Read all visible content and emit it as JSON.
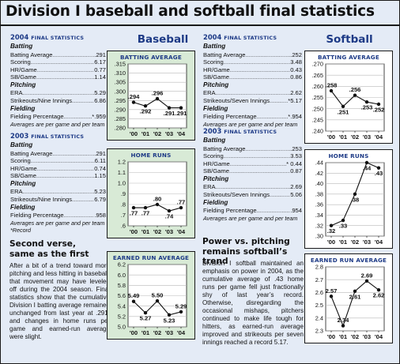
{
  "page": {
    "title": "Division I baseball and softball final statistics",
    "baseball_label": "Baseball",
    "softball_label": "Softball"
  },
  "baseball": {
    "y2004": {
      "year": "2004",
      "heading": "FINAL STATISTICS",
      "batting": "Batting",
      "rows1": [
        {
          "label": "Batting Average",
          "value": ".291"
        },
        {
          "label": "Scoring",
          "value": "6.17"
        },
        {
          "label": "HR/Game",
          "value": "0.77"
        },
        {
          "label": "SB/Game",
          "value": "1.14"
        }
      ],
      "pitching": "Pitching",
      "rows2": [
        {
          "label": "ERA",
          "value": "5.29"
        },
        {
          "label": "Strikeouts/Nine Innings",
          "value": "6.86"
        }
      ],
      "fielding": "Fielding",
      "rows3": [
        {
          "label": "Fielding Percentage",
          "value": "*.959"
        }
      ],
      "note": "Averages are per game and per team"
    },
    "y2003": {
      "year": "2003",
      "heading": "FINAL STATISTICS",
      "batting": "Batting",
      "rows1": [
        {
          "label": "Batting Average",
          "value": ".291"
        },
        {
          "label": "Scoring",
          "value": "6.11"
        },
        {
          "label": "HR/Game",
          "value": "0.74"
        },
        {
          "label": "SB/Game",
          "value": "1.15"
        }
      ],
      "pitching": "Pitching",
      "rows2": [
        {
          "label": "ERA",
          "value": "5.23"
        },
        {
          "label": "Strikeouts/Nine Innings",
          "value": "6.79"
        }
      ],
      "fielding": "Fielding",
      "rows3": [
        {
          "label": "Fielding Percentage",
          "value": ".958"
        }
      ],
      "note": "Averages are per game and per team",
      "record": "*Record"
    },
    "story_head": [
      "Second verse,",
      "same as the first"
    ],
    "story": "After a bit of a trend toward more pitching and less hitting in baseball, that movement may have leveled off during the 2004 season. Final statistics show that the cumulative Division I batting average remained unchanged from last year at .291, and changes in home runs per game and earned-run average were slight."
  },
  "softball": {
    "y2004": {
      "year": "2004",
      "heading": "FINAL STATISTICS",
      "batting": "Batting",
      "rows1": [
        {
          "label": "Batting Average",
          "value": ".252"
        },
        {
          "label": "Scoring",
          "value": "3.48"
        },
        {
          "label": "HR/Game",
          "value": "0.43"
        },
        {
          "label": "SB/Game",
          "value": "0.86"
        }
      ],
      "pitching": "Pitching",
      "rows2": [
        {
          "label": "ERA",
          "value": "2.62"
        },
        {
          "label": "Strikeouts/Seven Innings",
          "value": "*5.17"
        }
      ],
      "fielding": "Fielding",
      "rows3": [
        {
          "label": "Fielding Percentage",
          "value": "*.954"
        }
      ],
      "note": "Averages are per game and per team"
    },
    "y2003": {
      "year": "2003",
      "heading": "FINAL STATISTICS",
      "batting": "Batting",
      "rows1": [
        {
          "label": "Batting Average",
          "value": ".253"
        },
        {
          "label": "Scoring",
          "value": "3.53"
        },
        {
          "label": "HR/Game",
          "value": "* 0.44"
        },
        {
          "label": "SB/Game",
          "value": "0.87"
        }
      ],
      "pitching": "Pitching",
      "rows2": [
        {
          "label": "ERA",
          "value": "2.69"
        },
        {
          "label": "Strikeouts/Seven Innings",
          "value": "5.06"
        }
      ],
      "fielding": "Fielding",
      "rows3": [
        {
          "label": "Fielding Percentage",
          "value": ".954"
        }
      ],
      "note": "Averages are per game and per team"
    },
    "story_head": [
      "Power vs. pitching",
      "remains softball’s trend"
    ],
    "story": "Division I softball maintained an emphasis on power in 2004, as the cumulative average of .43 home runs per game fell just fractionally shy of last year’s record. Otherwise, disregarding the occasional mishaps, pitchers continued to make life tough for hitters, as earned-run average improved and strikeouts per seven innings reached a record 5.17."
  },
  "chart_data": [
    {
      "id": "bb_avg",
      "type": "line",
      "title": "BATTING AVERAGE",
      "categories": [
        "'00",
        "'01",
        "'02",
        "'03",
        "'04"
      ],
      "values": [
        0.294,
        0.292,
        0.296,
        0.291,
        0.291
      ],
      "labels": [
        ".294",
        ".292",
        ".296",
        ".291",
        ".291"
      ],
      "ylim": [
        0.28,
        0.315
      ],
      "yticks": [
        0.28,
        0.285,
        0.29,
        0.295,
        0.3,
        0.305,
        0.31,
        0.315
      ],
      "ytick_labels": [
        ".280",
        ".285",
        ".290",
        ".295",
        ".300",
        ".305",
        ".310",
        ".315"
      ],
      "grid": true,
      "panel_color": "#d8ead6"
    },
    {
      "id": "bb_hr",
      "type": "line",
      "title": "HOME RUNS",
      "categories": [
        "'00",
        "'01",
        "'02",
        "'03",
        "'04"
      ],
      "values": [
        0.77,
        0.77,
        0.8,
        0.74,
        0.77
      ],
      "labels": [
        ".77",
        ".77",
        ".80",
        ".74",
        ".77"
      ],
      "ylim": [
        0.6,
        1.2
      ],
      "yticks": [
        0.6,
        0.7,
        0.8,
        0.9,
        1.0,
        1.1,
        1.2
      ],
      "ytick_labels": [
        ".6",
        ".7",
        ".8",
        ".9",
        "1.0",
        "1.1",
        "1.2"
      ],
      "grid": true,
      "panel_color": "#d8ead6"
    },
    {
      "id": "bb_era",
      "type": "line",
      "title": "EARNED RUN AVERAGE",
      "categories": [
        "'00",
        "'01",
        "'02",
        "'03",
        "'04"
      ],
      "values": [
        5.49,
        5.27,
        5.5,
        5.23,
        5.29
      ],
      "labels": [
        "5.49",
        "5.27",
        "5.50",
        "5.23",
        "5.29"
      ],
      "ylim": [
        5.0,
        6.2
      ],
      "yticks": [
        5.0,
        5.2,
        5.4,
        5.6,
        5.8,
        6.0,
        6.2
      ],
      "ytick_labels": [
        "5.0",
        "5.2",
        "5.4",
        "5.6",
        "5.8",
        "6.0",
        "6.2"
      ],
      "grid": true,
      "panel_color": "#d8ead6"
    },
    {
      "id": "sb_avg",
      "type": "line",
      "title": "BATTING AVERAGE",
      "categories": [
        "'00",
        "'01",
        "'02",
        "'03",
        "'04"
      ],
      "values": [
        0.258,
        0.251,
        0.256,
        0.253,
        0.252
      ],
      "labels": [
        ".258",
        ".251",
        ".256",
        ".253",
        ".252"
      ],
      "ylim": [
        0.24,
        0.27
      ],
      "yticks": [
        0.24,
        0.245,
        0.25,
        0.255,
        0.26,
        0.265,
        0.27
      ],
      "ytick_labels": [
        ".240",
        ".245",
        ".250",
        ".255",
        ".260",
        ".265",
        ".270"
      ],
      "grid": true,
      "panel_color": "#ffffff"
    },
    {
      "id": "sb_hr",
      "type": "line",
      "title": "HOME RUNS",
      "categories": [
        "'00",
        "'01",
        "'02",
        "'03",
        "'04"
      ],
      "values": [
        0.32,
        0.33,
        0.38,
        0.44,
        0.43
      ],
      "labels": [
        ".32",
        ".33",
        ".38",
        ".44",
        ".43"
      ],
      "ylim": [
        0.3,
        0.44
      ],
      "yticks": [
        0.3,
        0.32,
        0.34,
        0.36,
        0.38,
        0.4,
        0.42,
        0.44
      ],
      "ytick_labels": [
        ".30",
        ".32",
        ".34",
        ".36",
        ".38",
        ".40",
        ".42",
        ".44"
      ],
      "grid": true,
      "panel_color": "#ffffff"
    },
    {
      "id": "sb_era",
      "type": "line",
      "title": "EARNED RUN AVERAGE",
      "categories": [
        "'00",
        "'01",
        "'02",
        "'03",
        "'04"
      ],
      "values": [
        2.57,
        2.34,
        2.61,
        2.69,
        2.62
      ],
      "labels": [
        "2.57",
        "2.34",
        "2.61",
        "2.69",
        "2.62"
      ],
      "ylim": [
        2.3,
        2.8
      ],
      "yticks": [
        2.3,
        2.4,
        2.5,
        2.6,
        2.7,
        2.8
      ],
      "ytick_labels": [
        "2.3",
        "2.4",
        "2.5",
        "2.6",
        "2.7",
        "2.8"
      ],
      "grid": true,
      "panel_color": "#ffffff"
    }
  ]
}
